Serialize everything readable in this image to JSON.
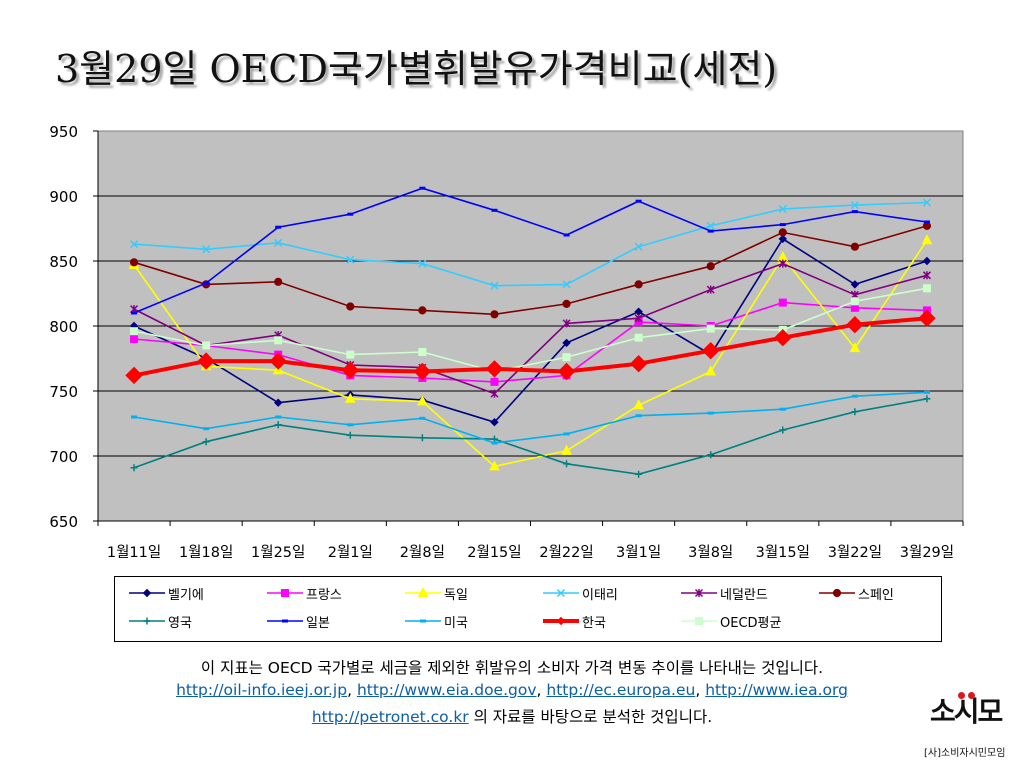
{
  "page": {
    "title": "3월29일 OECD국가별휘발유가격비교(세전)"
  },
  "chart_data": {
    "type": "line",
    "title": "",
    "xlabel": "",
    "ylabel": "",
    "ylim": [
      650,
      950
    ],
    "yticks": [
      650,
      700,
      750,
      800,
      850,
      900,
      950
    ],
    "grid": true,
    "legend_position": "bottom",
    "categories": [
      "1월11일",
      "1월18일",
      "1월25일",
      "2월1일",
      "2월8일",
      "2월15일",
      "2월22일",
      "3월1일",
      "3월8일",
      "3월15일",
      "3월22일",
      "3월29일"
    ],
    "series": [
      {
        "name": "벨기에",
        "color": "#000080",
        "marker": "diamond",
        "values": [
          800,
          775,
          741,
          747,
          743,
          726,
          787,
          811,
          778,
          867,
          832,
          850
        ]
      },
      {
        "name": "프랑스",
        "color": "#ff00ff",
        "marker": "square",
        "values": [
          790,
          785,
          778,
          762,
          760,
          757,
          762,
          803,
          800,
          818,
          814,
          812
        ]
      },
      {
        "name": "독일",
        "color": "#ffff00",
        "marker": "triangle",
        "values": [
          847,
          769,
          766,
          744,
          742,
          692,
          704,
          739,
          765,
          853,
          783,
          866
        ]
      },
      {
        "name": "이태리",
        "color": "#33ccff",
        "marker": "x",
        "values": [
          863,
          859,
          864,
          851,
          848,
          831,
          832,
          861,
          877,
          890,
          893,
          895
        ]
      },
      {
        "name": "네덜란드",
        "color": "#800080",
        "marker": "star",
        "values": [
          813,
          785,
          793,
          770,
          768,
          748,
          802,
          806,
          828,
          848,
          824,
          839
        ]
      },
      {
        "name": "스페인",
        "color": "#800000",
        "marker": "circle",
        "values": [
          849,
          832,
          834,
          815,
          812,
          809,
          817,
          832,
          846,
          872,
          861,
          877
        ]
      },
      {
        "name": "영국",
        "color": "#008080",
        "marker": "plus",
        "values": [
          691,
          711,
          724,
          716,
          714,
          713,
          694,
          686,
          701,
          720,
          734,
          744
        ]
      },
      {
        "name": "일본",
        "color": "#0000ff",
        "marker": "dash",
        "values": [
          810,
          833,
          876,
          886,
          906,
          889,
          870,
          896,
          873,
          878,
          888,
          880
        ]
      },
      {
        "name": "미국",
        "color": "#00b0f0",
        "marker": "dash",
        "values": [
          730,
          721,
          730,
          724,
          729,
          710,
          717,
          731,
          733,
          736,
          746,
          749
        ]
      },
      {
        "name": "한국",
        "color": "#ff0000",
        "marker": "diamond-big",
        "values": [
          762,
          773,
          773,
          766,
          765,
          767,
          765,
          771,
          781,
          791,
          801,
          806
        ]
      },
      {
        "name": "OECD평균",
        "color": "#ccffcc",
        "marker": "square",
        "values": [
          796,
          785,
          789,
          778,
          780,
          765,
          776,
          791,
          798,
          797,
          819,
          829
        ]
      }
    ]
  },
  "caption": {
    "line1": "이 지표는 OECD 국가별로 세금을 제외한 휘발유의 소비자 가격 변동 추이를 나타내는 것입니다.",
    "links": [
      "http://oil-info.ieej.or.jp",
      "http://www.eia.doe.gov",
      "http://ec.europa.eu",
      "http://www.iea.org",
      "http://petronet.co.kr"
    ],
    "sep": ", ",
    "line3_suffix": " 의 자료를 바탕으로 분석한 것입니다."
  },
  "logo": {
    "main": "소시모",
    "sub": "[사]소비자시민모임",
    "dot_color": "#d71920"
  }
}
